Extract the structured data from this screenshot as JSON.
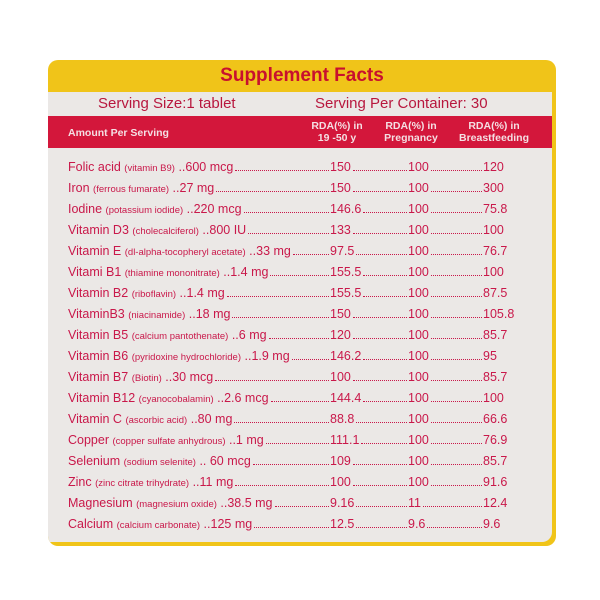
{
  "title": "Supplement Facts",
  "serving_size": "Serving Size:1 tablet",
  "serving_per_container": "Serving Per Container: 30",
  "header": {
    "amount": "Amount Per Serving",
    "col1": "RDA(%) in 19 -50 y",
    "col2": "RDA(%) in Pregnancy",
    "col3": "RDA(%) in Breastfeeding"
  },
  "colors": {
    "accent_red": "#d3173b",
    "text_red": "#c9184a",
    "yellow": "#f0c419"
  },
  "rows": [
    {
      "name": "Folic acid",
      "source": "(vitamin B9)",
      "amount": "..600 mcg",
      "v1": "150",
      "v2": "100",
      "v3": "120"
    },
    {
      "name": "Iron",
      "source": "(ferrous fumarate)",
      "amount": "..27 mg",
      "v1": "150",
      "v2": "100",
      "v3": "300"
    },
    {
      "name": "Iodine",
      "source": "(potassium iodide)",
      "amount": "..220 mcg",
      "v1": "146.6",
      "v2": "100",
      "v3": "75.8"
    },
    {
      "name": "Vitamin D3",
      "source": "(cholecalciferol)",
      "amount": "..800 IU",
      "v1": "133",
      "v2": "100",
      "v3": "100"
    },
    {
      "name": "Vitamin E",
      "source": "(dl-alpha-tocopheryl acetate)",
      "amount": "..33 mg",
      "v1": "97.5",
      "v2": "100",
      "v3": "76.7"
    },
    {
      "name": "Vitami B1",
      "source": "(thiamine mononitrate)",
      "amount": "..1.4 mg",
      "v1": "155.5",
      "v2": "100",
      "v3": "100"
    },
    {
      "name": "Vitamin B2",
      "source": "(riboflavin)",
      "amount": "..1.4 mg",
      "v1": "155.5",
      "v2": "100",
      "v3": "87.5"
    },
    {
      "name": "VitaminB3",
      "source": "(niacinamide)",
      "amount": "..18 mg",
      "v1": "150",
      "v2": "100",
      "v3": "105.8"
    },
    {
      "name": "Vitamin B5",
      "source": "(calcium pantothenate)",
      "amount": "..6 mg",
      "v1": "120",
      "v2": "100",
      "v3": "85.7"
    },
    {
      "name": "Vitamin B6",
      "source": "(pyridoxine hydrochloride)",
      "amount": "..1.9 mg",
      "v1": "146.2",
      "v2": "100",
      "v3": "95"
    },
    {
      "name": "Vitamin B7",
      "source": "(Biotin)",
      "amount": "..30 mcg",
      "v1": "100",
      "v2": "100",
      "v3": "85.7"
    },
    {
      "name": "Vitamin B12",
      "source": "(cyanocobalamin)",
      "amount": "..2.6 mcg",
      "v1": "144.4",
      "v2": "100",
      "v3": "100"
    },
    {
      "name": "Vitamin C",
      "source": "(ascorbic acid)",
      "amount": "..80 mg",
      "v1": "88.8",
      "v2": "100",
      "v3": "66.6"
    },
    {
      "name": "Copper",
      "source": "(copper sulfate anhydrous)",
      "amount": "..1 mg",
      "v1": "111.1",
      "v2": "100",
      "v3": "76.9"
    },
    {
      "name": "Selenium",
      "source": "(sodium selenite)",
      "amount": ".. 60 mcg",
      "v1": "109",
      "v2": "100",
      "v3": "85.7"
    },
    {
      "name": "Zinc",
      "source": "(zinc citrate trihydrate)",
      "amount": "..11 mg",
      "v1": "100",
      "v2": "100",
      "v3": "91.6"
    },
    {
      "name": "Magnesium",
      "source": "(magnesium oxide)",
      "amount": "..38.5 mg",
      "v1": "9.16",
      "v2": "11",
      "v3": "12.4"
    },
    {
      "name": "Calcium",
      "source": "(calcium carbonate)",
      "amount": "..125 mg",
      "v1": "12.5",
      "v2": "9.6",
      "v3": "9.6"
    }
  ]
}
